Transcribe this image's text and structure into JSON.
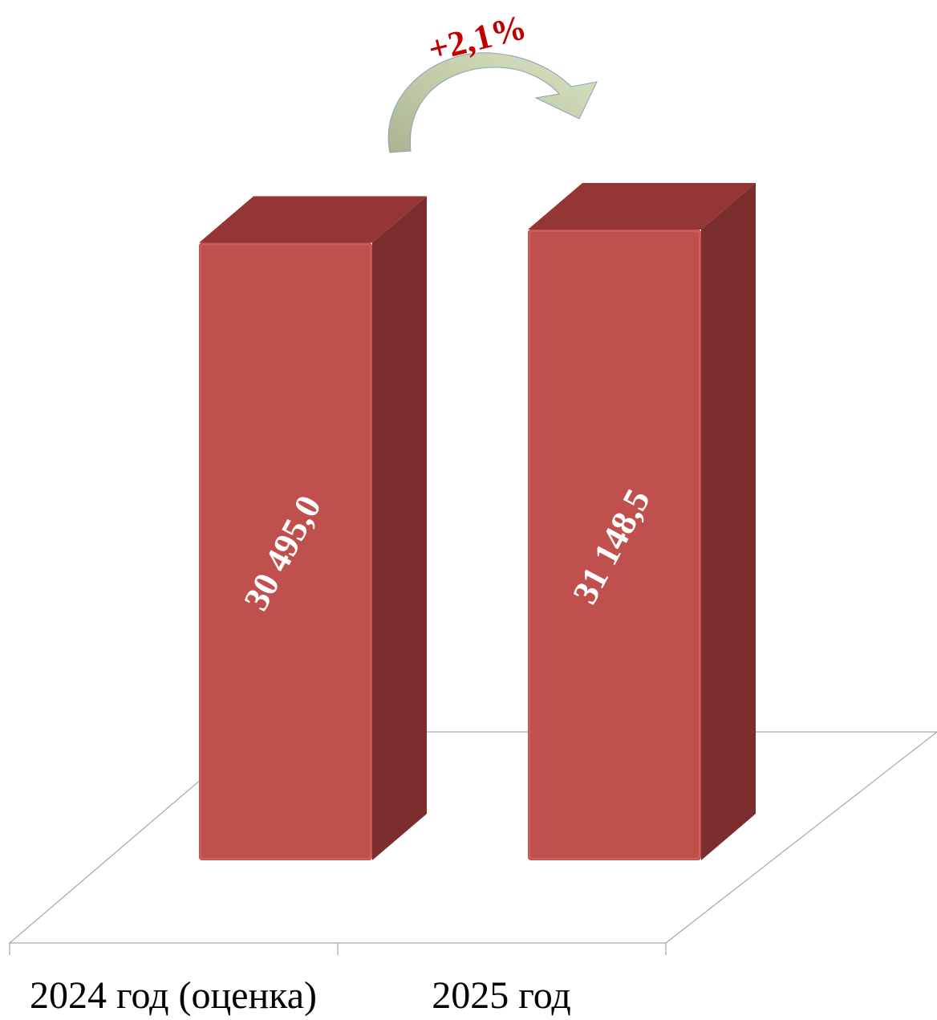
{
  "chart_data": {
    "type": "bar",
    "style": "3d-column",
    "categories": [
      "2024 год (оценка)",
      "2025 год"
    ],
    "values": [
      30495.0,
      31148.5
    ],
    "value_labels": [
      "30 495,0",
      "31 148,5"
    ],
    "growth_label": "+2,1%",
    "title": "",
    "xlabel": "",
    "ylabel": "",
    "ylim": [
      0,
      31400
    ],
    "grid": false,
    "legend": "none"
  },
  "colors": {
    "bar_front": "#c0504d",
    "bar_top": "#943634",
    "bar_side": "#7b2e2d",
    "floor_line": "#a6a6a6",
    "value_label": "#ffffff",
    "growth_label": "#c00000",
    "arrow_start": "#a9b592",
    "arrow_end": "#d9e5c2",
    "category_label": "#000000"
  }
}
